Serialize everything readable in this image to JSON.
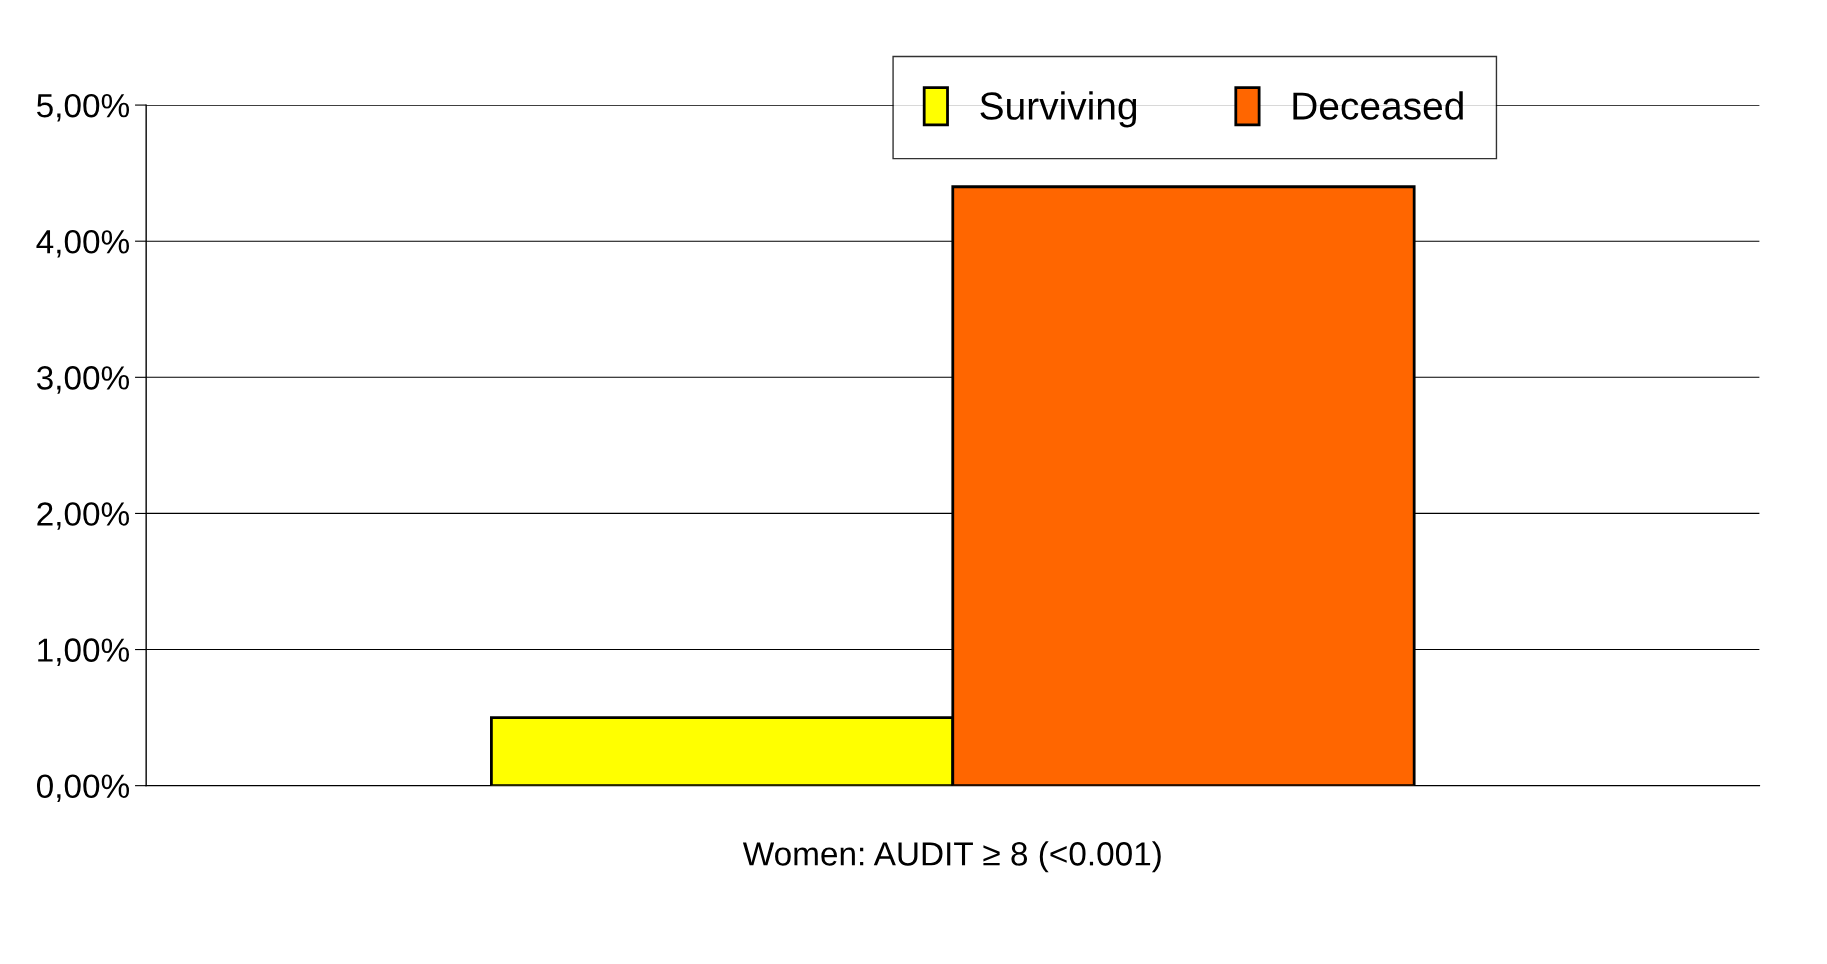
{
  "chart_data": {
    "type": "bar",
    "categories": [
      "Women: AUDIT ≥ 8 (<0.001)"
    ],
    "series": [
      {
        "name": "Surviving",
        "color": "#ffff00",
        "values": [
          0.5
        ]
      },
      {
        "name": "Deceased",
        "color": "#ff6600",
        "values": [
          4.4
        ]
      }
    ],
    "ylim": [
      0,
      5
    ],
    "yticks": [
      {
        "value": 0,
        "label": "0,00%"
      },
      {
        "value": 1,
        "label": "1,00%"
      },
      {
        "value": 2,
        "label": "2,00%"
      },
      {
        "value": 3,
        "label": "3,00%"
      },
      {
        "value": 4,
        "label": "4,00%"
      },
      {
        "value": 5,
        "label": "5,00%"
      }
    ],
    "grid": "y",
    "legend": "top"
  }
}
